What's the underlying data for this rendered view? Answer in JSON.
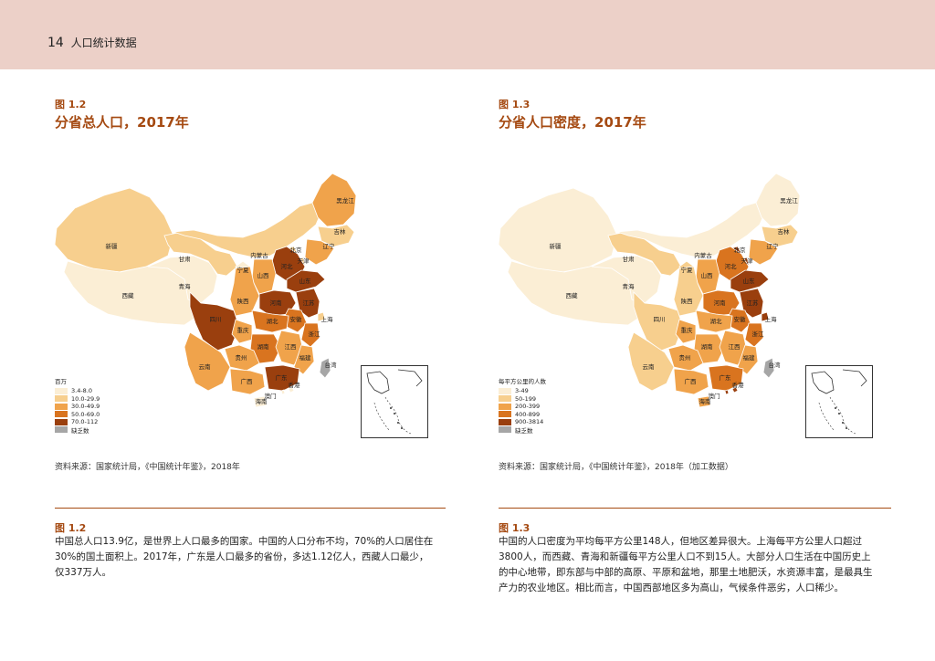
{
  "header": {
    "page_number": "14",
    "section": "人口统计数据"
  },
  "left": {
    "figure_label": "图 1.2",
    "title": "分省总人口，2017年",
    "legend_title": "百万",
    "legend": [
      {
        "label": "3.4-8.0",
        "color": "#fbeed5"
      },
      {
        "label": "10.0-29.9",
        "color": "#f7cf8e"
      },
      {
        "label": "30.0-49.9",
        "color": "#f0a34b"
      },
      {
        "label": "50.0-69.0",
        "color": "#d9741f"
      },
      {
        "label": "70.0-112",
        "color": "#9a3f0e"
      },
      {
        "label": "缺乏数",
        "color": "#a6a6a6"
      }
    ],
    "source": "资料来源：国家统计局，《中国统计年鉴》，2018年",
    "desc_label": "图 1.2",
    "desc_lines": [
      "中国总人口13.9亿，是世界上人口最多的国家。中国的人口分布不均，70%的人口居住在",
      "30%的国土面积上。2017年，广东是人口最多的省份，多达1.12亿人，西藏人口最少，",
      "仅337万人。"
    ],
    "provinces": {
      "heilongjiang": {
        "label": "黑龙江",
        "color": "#f0a34b"
      },
      "jilin": {
        "label": "吉林",
        "color": "#f7cf8e"
      },
      "liaoning": {
        "label": "辽宁",
        "color": "#f0a34b"
      },
      "neimenggu": {
        "label": "内蒙古",
        "color": "#f7cf8e"
      },
      "xinjiang": {
        "label": "新疆",
        "color": "#f7cf8e"
      },
      "xizang": {
        "label": "西藏",
        "color": "#fbeed5"
      },
      "qinghai": {
        "label": "青海",
        "color": "#fbeed5"
      },
      "gansu": {
        "label": "甘肃",
        "color": "#f7cf8e"
      },
      "ningxia": {
        "label": "宁夏",
        "color": "#fbeed5"
      },
      "beijing": {
        "label": "北京",
        "color": "#f7cf8e"
      },
      "tianjin": {
        "label": "天津",
        "color": "#f7cf8e"
      },
      "hebei": {
        "label": "河北",
        "color": "#9a3f0e"
      },
      "shanxi": {
        "label": "山西",
        "color": "#f0a34b"
      },
      "shandong": {
        "label": "山东",
        "color": "#9a3f0e"
      },
      "henan": {
        "label": "河南",
        "color": "#9a3f0e"
      },
      "shaanxi": {
        "label": "陕西",
        "color": "#f0a34b"
      },
      "jiangsu": {
        "label": "江苏",
        "color": "#9a3f0e"
      },
      "shanghai": {
        "label": "上海",
        "color": "#f7cf8e"
      },
      "anhui": {
        "label": "安徽",
        "color": "#d9741f"
      },
      "hubei": {
        "label": "湖北",
        "color": "#d9741f"
      },
      "sichuan": {
        "label": "四川",
        "color": "#9a3f0e"
      },
      "chongqing": {
        "label": "重庆",
        "color": "#f0a34b"
      },
      "zhejiang": {
        "label": "浙江",
        "color": "#d9741f"
      },
      "hunan": {
        "label": "湖南",
        "color": "#d9741f"
      },
      "jiangxi": {
        "label": "江西",
        "color": "#f0a34b"
      },
      "guizhou": {
        "label": "贵州",
        "color": "#f0a34b"
      },
      "yunnan": {
        "label": "云南",
        "color": "#f0a34b"
      },
      "fujian": {
        "label": "福建",
        "color": "#f0a34b"
      },
      "guangxi": {
        "label": "广西",
        "color": "#f0a34b"
      },
      "guangdong": {
        "label": "广东",
        "color": "#9a3f0e"
      },
      "taiwan": {
        "label": "台湾",
        "color": "#a6a6a6"
      },
      "hongkong": {
        "label": "香港",
        "color": "#fbeed5"
      },
      "macau": {
        "label": "澳门",
        "color": "#fbeed5"
      },
      "hainan": {
        "label": "海南",
        "color": "#fbeed5"
      }
    }
  },
  "right": {
    "figure_label": "图 1.3",
    "title": "分省人口密度，2017年",
    "legend_title": "每平方公里的人数",
    "legend": [
      {
        "label": "3-49",
        "color": "#fbeed5"
      },
      {
        "label": "50-199",
        "color": "#f7cf8e"
      },
      {
        "label": "200-399",
        "color": "#f0a34b"
      },
      {
        "label": "400-899",
        "color": "#d9741f"
      },
      {
        "label": "900-3814",
        "color": "#9a3f0e"
      },
      {
        "label": "缺乏数",
        "color": "#a6a6a6"
      }
    ],
    "source": "资料来源：国家统计局，《中国统计年鉴》，2018年（加工数据）",
    "desc_label": "图 1.3",
    "desc_lines": [
      "中国的人口密度为平均每平方公里148人，但地区差异很大。上海每平方公里人口超过",
      "3800人，而西藏、青海和新疆每平方公里人口不到15人。大部分人口生活在中国历史上",
      "的中心地带，即东部与中部的高原、平原和盆地，那里土地肥沃，水资源丰富，是最具生",
      "产力的农业地区。相比而言，中国西部地区多为高山，气候条件恶劣，人口稀少。"
    ],
    "provinces": {
      "heilongjiang": {
        "label": "黑龙江",
        "color": "#fbeed5"
      },
      "jilin": {
        "label": "吉林",
        "color": "#f7cf8e"
      },
      "liaoning": {
        "label": "辽宁",
        "color": "#f0a34b"
      },
      "neimenggu": {
        "label": "内蒙古",
        "color": "#fbeed5"
      },
      "xinjiang": {
        "label": "新疆",
        "color": "#fbeed5"
      },
      "xizang": {
        "label": "西藏",
        "color": "#fbeed5"
      },
      "qinghai": {
        "label": "青海",
        "color": "#fbeed5"
      },
      "gansu": {
        "label": "甘肃",
        "color": "#f7cf8e"
      },
      "ningxia": {
        "label": "宁夏",
        "color": "#f7cf8e"
      },
      "beijing": {
        "label": "北京",
        "color": "#9a3f0e"
      },
      "tianjin": {
        "label": "天津",
        "color": "#9a3f0e"
      },
      "hebei": {
        "label": "河北",
        "color": "#d9741f"
      },
      "shanxi": {
        "label": "山西",
        "color": "#f0a34b"
      },
      "shandong": {
        "label": "山东",
        "color": "#9a3f0e"
      },
      "henan": {
        "label": "河南",
        "color": "#d9741f"
      },
      "shaanxi": {
        "label": "陕西",
        "color": "#f7cf8e"
      },
      "jiangsu": {
        "label": "江苏",
        "color": "#9a3f0e"
      },
      "shanghai": {
        "label": "上海",
        "color": "#9a3f0e"
      },
      "anhui": {
        "label": "安徽",
        "color": "#d9741f"
      },
      "hubei": {
        "label": "湖北",
        "color": "#f0a34b"
      },
      "sichuan": {
        "label": "四川",
        "color": "#f7cf8e"
      },
      "chongqing": {
        "label": "重庆",
        "color": "#f0a34b"
      },
      "zhejiang": {
        "label": "浙江",
        "color": "#d9741f"
      },
      "hunan": {
        "label": "湖南",
        "color": "#f0a34b"
      },
      "jiangxi": {
        "label": "江西",
        "color": "#f0a34b"
      },
      "guizhou": {
        "label": "贵州",
        "color": "#f0a34b"
      },
      "yunnan": {
        "label": "云南",
        "color": "#f7cf8e"
      },
      "fujian": {
        "label": "福建",
        "color": "#f0a34b"
      },
      "guangxi": {
        "label": "广西",
        "color": "#f0a34b"
      },
      "guangdong": {
        "label": "广东",
        "color": "#d9741f"
      },
      "taiwan": {
        "label": "台湾",
        "color": "#a6a6a6"
      },
      "hongkong": {
        "label": "香港",
        "color": "#9a3f0e"
      },
      "macau": {
        "label": "澳门",
        "color": "#9a3f0e"
      },
      "hainan": {
        "label": "海南",
        "color": "#f0a34b"
      }
    }
  }
}
